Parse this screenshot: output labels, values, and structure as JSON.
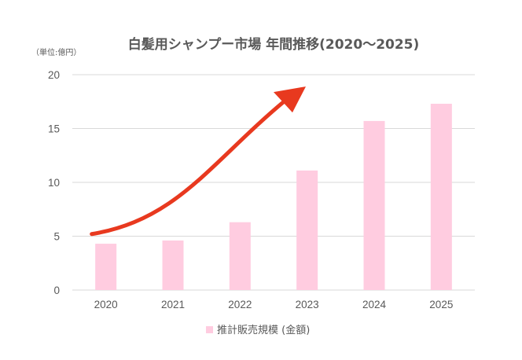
{
  "chart_data": {
    "type": "bar",
    "title": "白髪用シャンプー市場 年間推移(2020〜2025)",
    "unit_label": "（単位:億円）",
    "categories": [
      "2020",
      "2021",
      "2022",
      "2023",
      "2024",
      "2025"
    ],
    "series": [
      {
        "name": "推計販売規模 (金額)",
        "values": [
          4.3,
          4.6,
          6.3,
          11.1,
          15.7,
          17.3
        ],
        "color": "#ffcce0"
      }
    ],
    "ylim": [
      0,
      20
    ],
    "yticks": [
      0,
      5,
      10,
      15,
      20
    ],
    "grid": true,
    "legend_position": "bottom",
    "annotations": [
      {
        "kind": "trend-arrow",
        "color": "#e8391f",
        "from": {
          "x": "2020",
          "y": 5.2
        },
        "to": {
          "x": "2024",
          "y": 18.9
        }
      }
    ]
  }
}
